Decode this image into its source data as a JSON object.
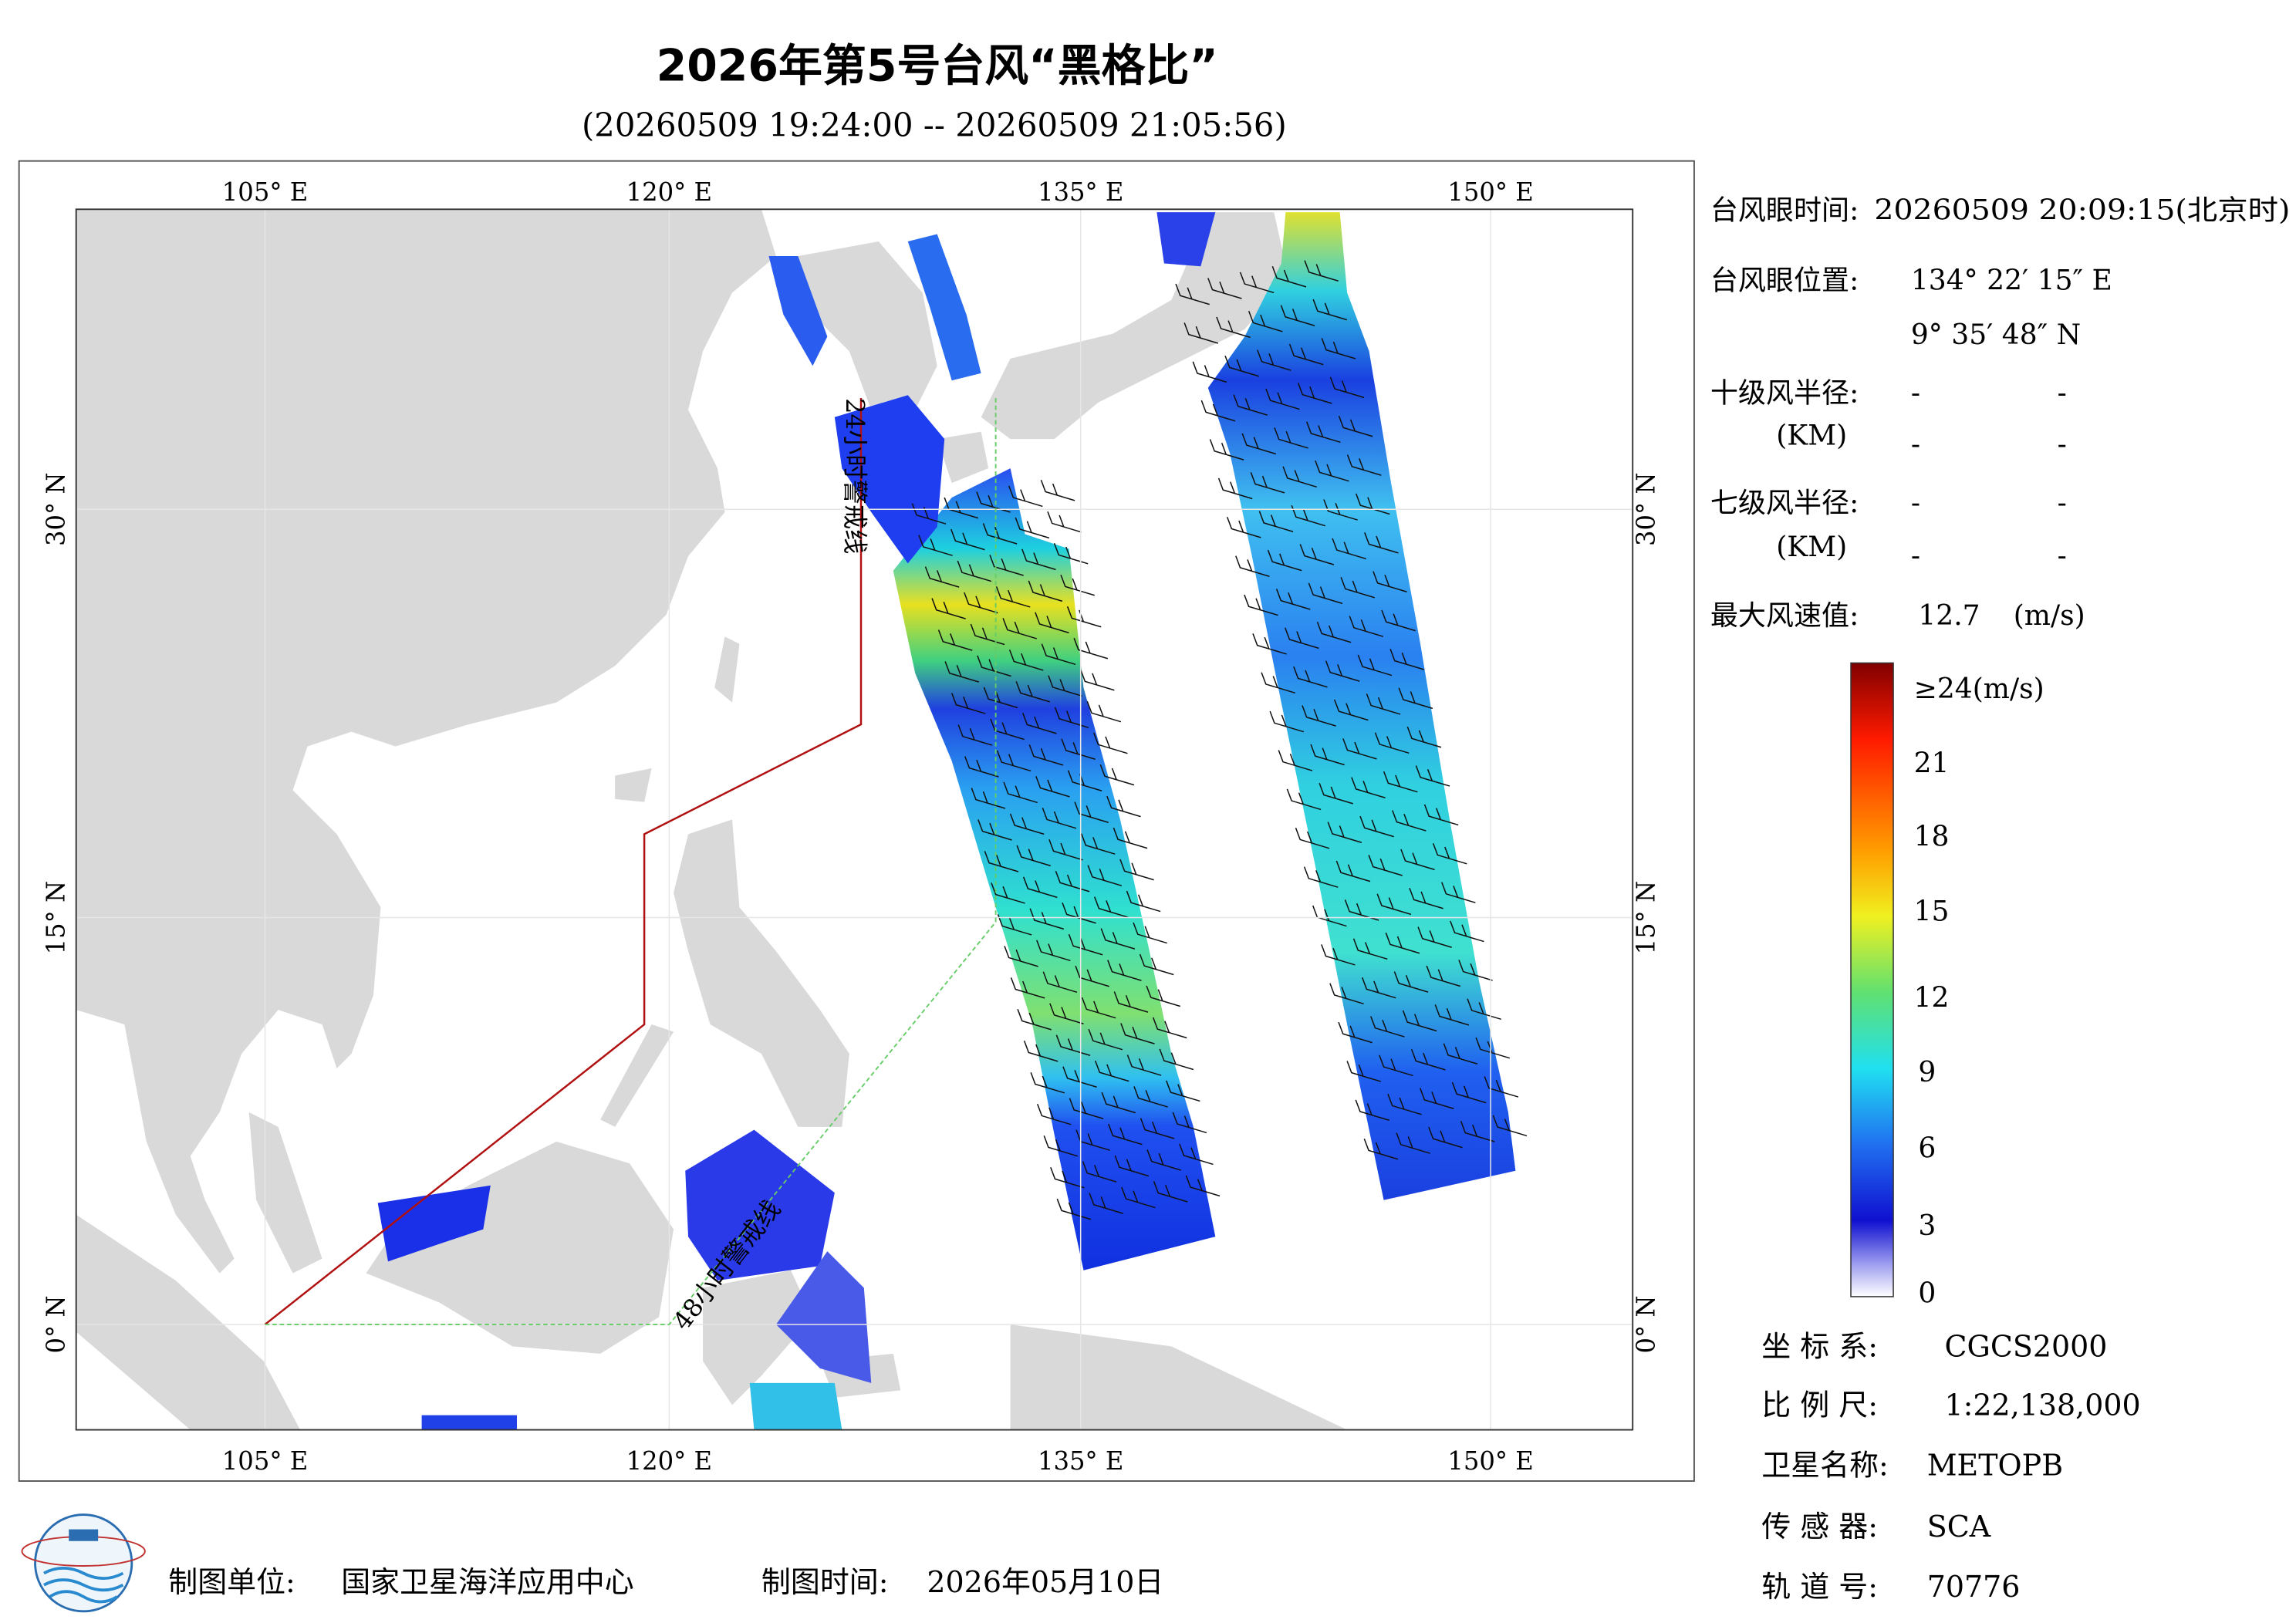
{
  "header": {
    "title": "2026年第5号台风“黑格比”",
    "subtitle": "(20260509 19:24:00 -- 20260509 21:05:56)"
  },
  "map": {
    "lon_labels": [
      "105° E",
      "120° E",
      "135° E",
      "150° E"
    ],
    "lat_labels": [
      "30° N",
      "15° N",
      "0° N"
    ],
    "warning_lines": [
      "24小时警戒线",
      "48小时警戒线"
    ]
  },
  "info": {
    "eye_time": {
      "label": "台风眼时间:",
      "value": "20260509 20:09:15(北京时)"
    },
    "eye_position": {
      "label": "台风眼位置:",
      "lon": "134° 22′ 15″ E",
      "lat": "9° 35′ 48″ N"
    },
    "r10": {
      "label": "十级风半径:",
      "unit": "(KM)",
      "values": [
        "-",
        "-",
        "-",
        "-"
      ]
    },
    "r7": {
      "label": "七级风半径:",
      "unit": "(KM)",
      "values": [
        "-",
        "-",
        "-",
        "-"
      ]
    },
    "max_wind": {
      "label": "最大风速值:",
      "value": "12.7",
      "unit": "(m/s)"
    }
  },
  "colorbar": {
    "labels": [
      "≥24(m/s)",
      "21",
      "18",
      "15",
      "12",
      "9",
      "6",
      "3",
      "0"
    ]
  },
  "meta": [
    {
      "label": "坐 标 系:",
      "value": "CGCS2000"
    },
    {
      "label": "比 例 尺:",
      "value": "1:22,138,000"
    },
    {
      "label": "卫星名称:",
      "value": "METOPB"
    },
    {
      "label": "传 感 器:",
      "value": "SCA"
    },
    {
      "label": "轨 道 号:",
      "value": "70776"
    }
  ],
  "footer": {
    "unit_label": "制图单位:",
    "unit": "国家卫星海洋应用中心",
    "time_label": "制图时间:",
    "time": "2026年05月10日"
  }
}
